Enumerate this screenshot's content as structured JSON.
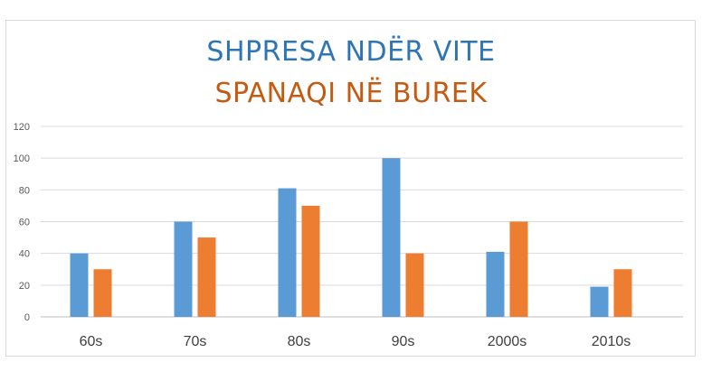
{
  "chart_data": {
    "type": "bar",
    "title_line1": "SHPRESA NDËR VITE",
    "title_line2": "SPANAQI NË BUREK",
    "categories": [
      "60s",
      "70s",
      "80s",
      "90s",
      "2000s",
      "2010s"
    ],
    "series": [
      {
        "values": [
          40,
          60,
          81,
          100,
          41,
          19
        ],
        "color": "#5b9bd5"
      },
      {
        "values": [
          30,
          50,
          70,
          40,
          60,
          30
        ],
        "color": "#ed7d31"
      }
    ],
    "ylim": [
      0,
      120
    ],
    "yticks": [
      0,
      20,
      40,
      60,
      80,
      100,
      120
    ],
    "grid": true,
    "legend": "none",
    "title_colors": [
      "#2e75b6",
      "#c55a11"
    ]
  }
}
